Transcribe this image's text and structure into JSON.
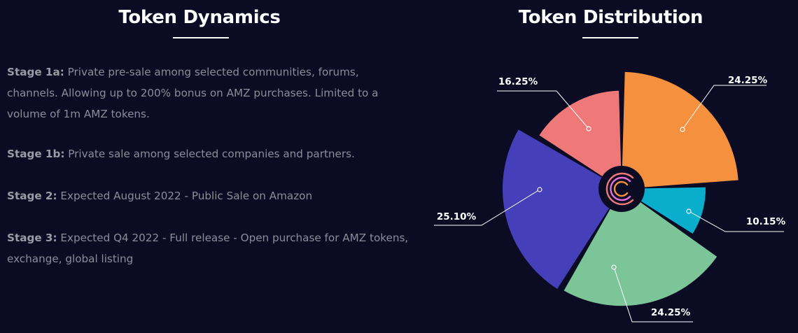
{
  "dynamics": {
    "title": "Token Dynamics",
    "stages": [
      {
        "label": "Stage 1a:",
        "text": " Private pre-sale among selected communities, forums, channels. Allowing up to 200% bonus on AMZ purchases. Limited to a volume of 1m AMZ tokens."
      },
      {
        "label": "Stage 1b:",
        "text": " Private sale among selected companies and partners."
      },
      {
        "label": "Stage 2:",
        "text": " Expected August 2022 - Public Sale on Amazon"
      },
      {
        "label": "Stage 3:",
        "text": " Expected Q4 2022 - Full release - Open purchase for AMZ tokens, exchange, global listing"
      }
    ]
  },
  "distribution": {
    "title": "Token Distribution",
    "center_icon": "c-logo-icon"
  },
  "chart_data": {
    "type": "pie",
    "title": "Token Distribution",
    "slices": [
      {
        "value": 24.25,
        "label": "24.25%",
        "color": "#f5913e"
      },
      {
        "value": 10.15,
        "label": "10.15%",
        "color": "#0aaecd"
      },
      {
        "value": 24.25,
        "label": "24.25%",
        "color": "#7bc598"
      },
      {
        "value": 25.1,
        "label": "25.10%",
        "color": "#463fba"
      },
      {
        "value": 16.25,
        "label": "16.25%",
        "color": "#ef7878"
      }
    ]
  }
}
